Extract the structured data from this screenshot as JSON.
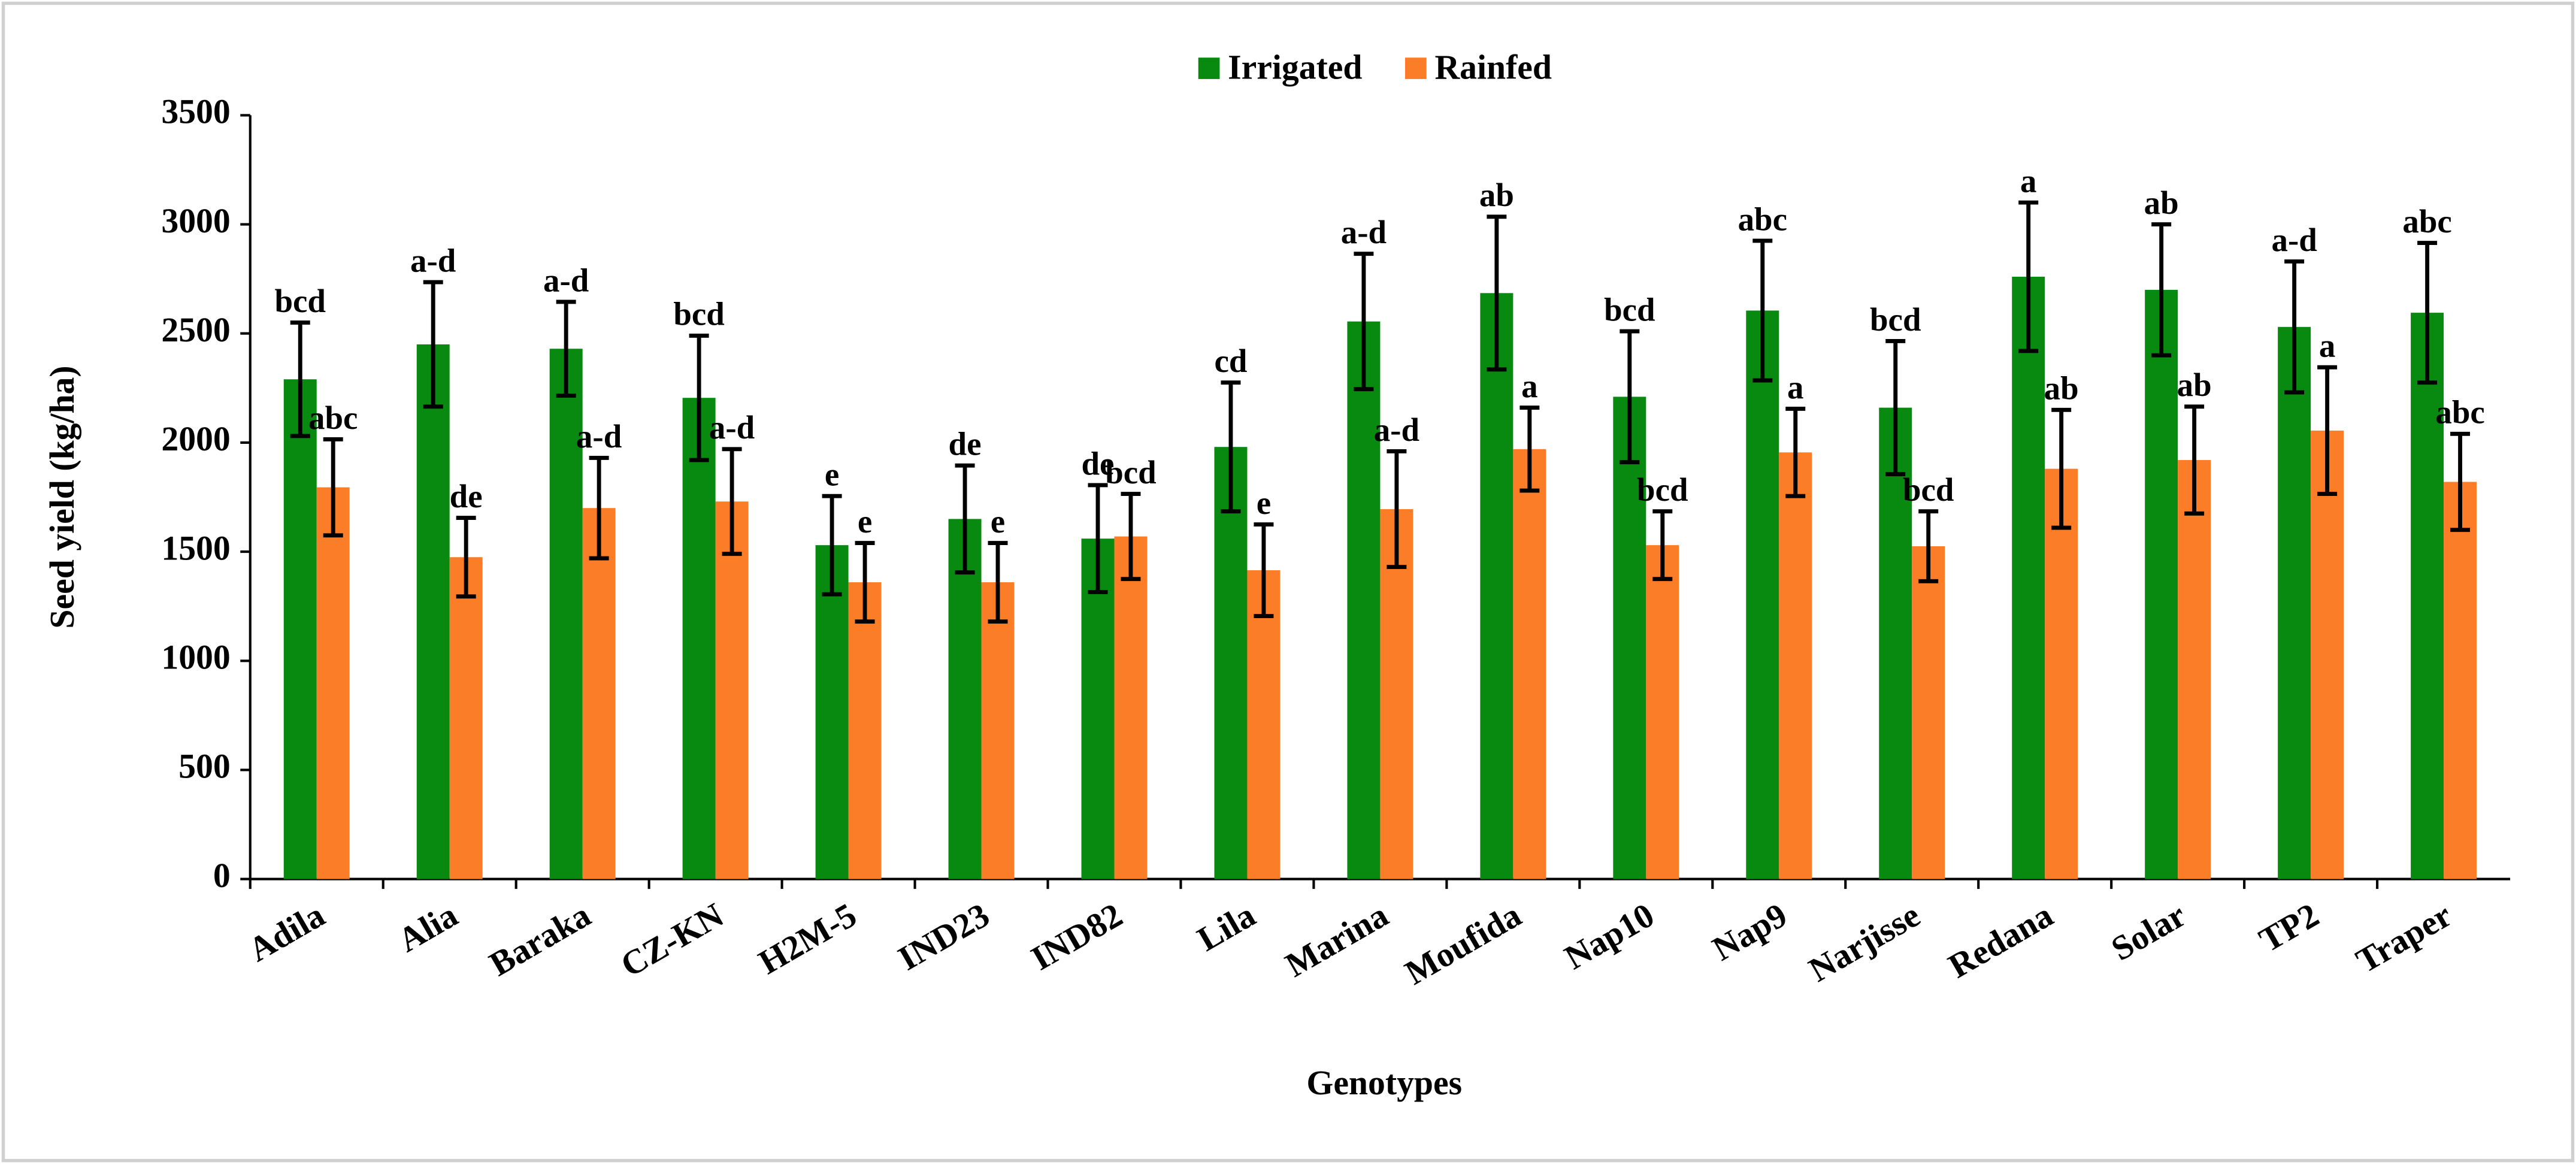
{
  "chart_data": {
    "type": "bar",
    "x_label": "Genotypes",
    "y_label": "Seed yield (kg/ha)",
    "categories": [
      "Adila",
      "Alia",
      "Baraka",
      "CZ-KN",
      "H2M-5",
      "IND23",
      "IND82",
      "Lila",
      "Marina",
      "Moufida",
      "Nap10",
      "Nap9",
      "Narjisse",
      "Redana",
      "Solar",
      "TP2",
      "Traper"
    ],
    "series": [
      {
        "name": "Irrigated",
        "color": "#078a0f",
        "values": [
          2290,
          2450,
          2430,
          2205,
          1530,
          1650,
          1560,
          1980,
          2555,
          2685,
          2210,
          2605,
          2160,
          2760,
          2700,
          2530,
          2595
        ],
        "errors": [
          260,
          285,
          215,
          285,
          225,
          245,
          245,
          295,
          310,
          350,
          300,
          320,
          305,
          340,
          300,
          300,
          320
        ],
        "letters": [
          "bcd",
          "a-d",
          "a-d",
          "bcd",
          "e",
          "de",
          "de",
          "cd",
          "a-d",
          "ab",
          "bcd",
          "abc",
          "bcd",
          "a",
          "ab",
          "a-d",
          "abc"
        ]
      },
      {
        "name": "Rainfed",
        "color": "#fb7d28",
        "values": [
          1795,
          1475,
          1700,
          1730,
          1360,
          1360,
          1570,
          1415,
          1695,
          1970,
          1530,
          1955,
          1525,
          1880,
          1920,
          2055,
          1820
        ],
        "errors": [
          220,
          180,
          230,
          240,
          180,
          180,
          195,
          210,
          265,
          190,
          155,
          200,
          160,
          270,
          245,
          290,
          220
        ],
        "letters": [
          "abc",
          "de",
          "a-d",
          "a-d",
          "e",
          "e",
          "bcd",
          "e",
          "a-d",
          "a",
          "bcd",
          "a",
          "bcd",
          "ab",
          "ab",
          "a",
          "abc"
        ]
      }
    ],
    "ylim": [
      0,
      3500
    ],
    "yticks": [
      0,
      500,
      1000,
      1500,
      2000,
      2500,
      3000,
      3500
    ],
    "grid": false,
    "legend": "top"
  }
}
